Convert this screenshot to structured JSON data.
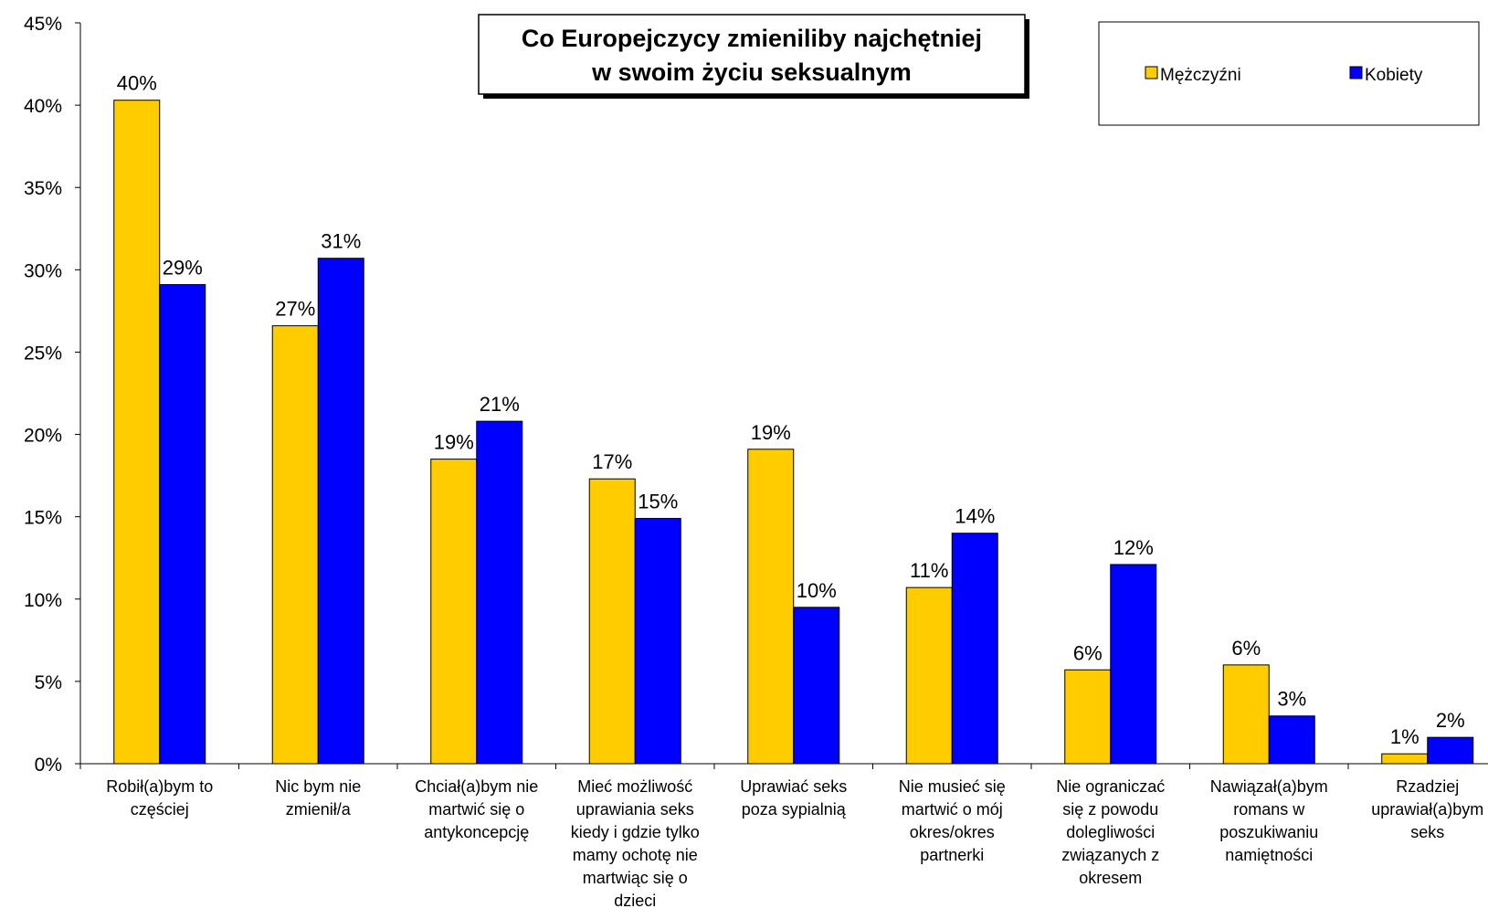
{
  "chart_data": {
    "type": "bar",
    "title_lines": [
      "Co Europejczycy zmieniliby najchętniej",
      "w swoim życiu seksualnym"
    ],
    "xlabel": "",
    "ylabel": "",
    "ylim": [
      0,
      45
    ],
    "y_ticks": [
      "0%",
      "5%",
      "10%",
      "15%",
      "20%",
      "25%",
      "30%",
      "35%",
      "40%",
      "45%"
    ],
    "y_tick_values": [
      0,
      5,
      10,
      15,
      20,
      25,
      30,
      35,
      40,
      45
    ],
    "grid": false,
    "legend_position": "top-right",
    "categories": [
      [
        "Robił(a)bym to",
        "częściej"
      ],
      [
        "Nic bym nie",
        "zmienił/a"
      ],
      [
        "Chciał(a)bym nie",
        "martwić się o",
        "antykoncepcję"
      ],
      [
        "Mieć możliwość",
        "uprawiania seks",
        "kiedy i gdzie tylko",
        "mamy ochotę nie",
        "martwiąc się o",
        "dzieci"
      ],
      [
        "Uprawiać seks",
        "poza sypialnią"
      ],
      [
        "Nie musieć się",
        "martwić o mój",
        "okres/okres",
        "partnerki"
      ],
      [
        "Nie ograniczać",
        "się z powodu",
        "dolegliwości",
        "związanych z",
        "okresem"
      ],
      [
        "Nawiązał(a)bym",
        "romans w",
        "poszukiwaniu",
        "namiętności"
      ],
      [
        "Rzadziej",
        "uprawiał(a)bym",
        "seks"
      ]
    ],
    "series": [
      {
        "name": "Mężczyźni",
        "color": "#FFCC00",
        "values": [
          40.3,
          26.6,
          18.5,
          17.3,
          19.1,
          10.7,
          5.7,
          6.0,
          0.6
        ],
        "labels": [
          "40%",
          "27%",
          "19%",
          "17%",
          "19%",
          "11%",
          "6%",
          "6%",
          "1%"
        ]
      },
      {
        "name": "Kobiety",
        "color": "#0000FF",
        "values": [
          29.1,
          30.7,
          20.8,
          14.9,
          9.5,
          14.0,
          12.1,
          2.9,
          1.6
        ],
        "labels": [
          "29%",
          "31%",
          "21%",
          "15%",
          "10%",
          "14%",
          "12%",
          "3%",
          "2%"
        ]
      }
    ]
  }
}
